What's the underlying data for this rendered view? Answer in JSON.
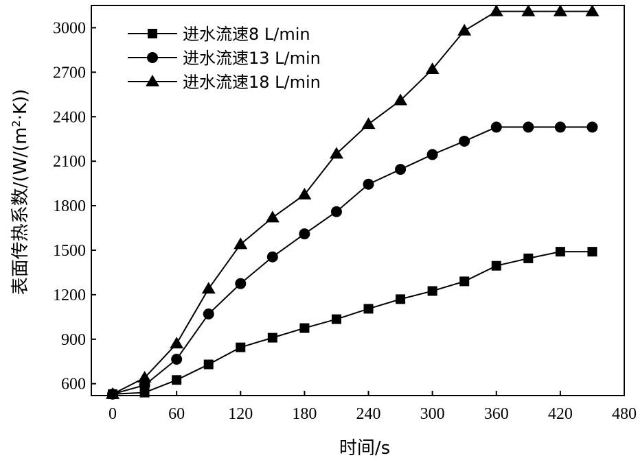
{
  "chart_data": {
    "type": "line",
    "title": "",
    "xlabel": "时间/s",
    "ylabel": "表面传热系数/(W/(m²·K))",
    "ylabel_parts": {
      "pre": "表面传热系数/(W/(m",
      "sup": "2",
      "post": "·K))"
    },
    "xlim": [
      -20,
      480
    ],
    "ylim": [
      520,
      3150
    ],
    "xticks": [
      0,
      60,
      120,
      180,
      240,
      300,
      360,
      420,
      480
    ],
    "yticks": [
      600,
      900,
      1200,
      1500,
      1800,
      2100,
      2400,
      2700,
      3000
    ],
    "grid": false,
    "legend_position": "top-left",
    "series": [
      {
        "name": "进水流速8 L/min",
        "marker": "square",
        "x": [
          0,
          30,
          60,
          90,
          120,
          150,
          180,
          210,
          240,
          270,
          300,
          330,
          360,
          390,
          420,
          450
        ],
        "y": [
          530,
          540,
          625,
          730,
          845,
          910,
          975,
          1035,
          1105,
          1170,
          1225,
          1290,
          1395,
          1445,
          1490,
          1490
        ]
      },
      {
        "name": "进水流速13 L/min",
        "marker": "circle",
        "x": [
          0,
          30,
          60,
          90,
          120,
          150,
          180,
          210,
          240,
          270,
          300,
          330,
          360,
          390,
          420,
          450
        ],
        "y": [
          530,
          590,
          765,
          1070,
          1275,
          1455,
          1610,
          1760,
          1945,
          2045,
          2145,
          2235,
          2330,
          2330,
          2330,
          2330
        ]
      },
      {
        "name": "进水流速18 L/min",
        "marker": "triangle",
        "x": [
          0,
          30,
          60,
          90,
          120,
          150,
          180,
          210,
          240,
          270,
          300,
          330,
          360,
          390,
          420,
          450
        ],
        "y": [
          530,
          640,
          870,
          1240,
          1540,
          1720,
          1875,
          2150,
          2350,
          2510,
          2720,
          2980,
          3110,
          3110,
          3110,
          3110
        ]
      }
    ]
  }
}
